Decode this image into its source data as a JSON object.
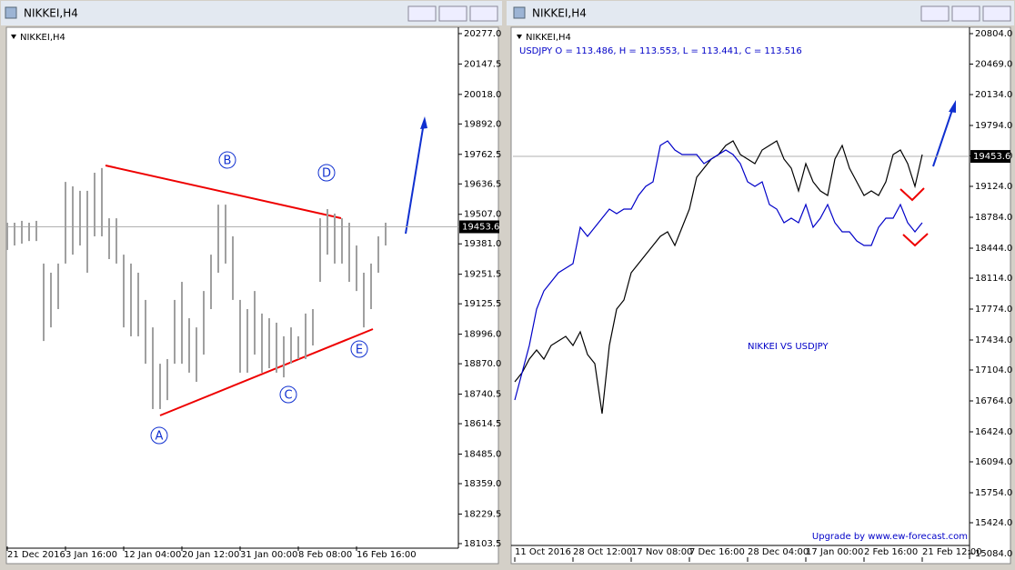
{
  "chart_data": [
    {
      "type": "range_bar",
      "title": "NIKKEI,H4",
      "symbol_label": "NIKKEI,H4",
      "color": "#a0a0a0",
      "categories": [
        "21 Dec 2016",
        null,
        null,
        null,
        null,
        null,
        null,
        null,
        "3 Jan 16:00",
        null,
        null,
        null,
        null,
        null,
        null,
        null,
        "12 Jan 04:00",
        null,
        null,
        null,
        null,
        null,
        null,
        null,
        "20 Jan 12:00",
        null,
        null,
        null,
        null,
        null,
        null,
        null,
        "31 Jan 00:00",
        null,
        null,
        null,
        null,
        null,
        null,
        null,
        "8 Feb 08:00",
        null,
        null,
        null,
        null,
        null,
        null,
        null,
        "16 Feb 16:00",
        null,
        null,
        null,
        null
      ],
      "highs": [
        19471,
        19471,
        19479,
        19471,
        19479,
        19297,
        19258,
        19297,
        19645,
        19626,
        19607,
        19607,
        19684,
        19704,
        19490,
        19490,
        19335,
        19297,
        19258,
        19142,
        19025,
        18870,
        18890,
        19142,
        19219,
        19064,
        19025,
        19180,
        19335,
        19548,
        19548,
        19413,
        19142,
        19103,
        19180,
        19084,
        19064,
        19045,
        18987,
        19025,
        18987,
        19084,
        19103,
        19490,
        19529,
        19510,
        19490,
        19471,
        19374,
        19258,
        19297,
        19413,
        19471
      ],
      "lows": [
        19355,
        19374,
        19382,
        19393,
        19393,
        18967,
        19025,
        19103,
        19297,
        19335,
        19374,
        19258,
        19413,
        19413,
        19316,
        19297,
        19025,
        18987,
        18987,
        18870,
        18677,
        18677,
        18715,
        18870,
        18870,
        18832,
        18793,
        18909,
        19103,
        19258,
        19297,
        19142,
        18832,
        18832,
        18909,
        18832,
        18851,
        18832,
        18812,
        18870,
        18890,
        18890,
        18948,
        19219,
        19335,
        19297,
        19297,
        19219,
        19180,
        19025,
        19103,
        19258,
        19374
      ],
      "current_price": 19453.6,
      "wave_labels": [
        "A",
        "B",
        "C",
        "D",
        "E"
      ],
      "ylim": [
        18084,
        20304
      ],
      "yticks": [
        {
          "value": 20277,
          "label": "20277.0"
        },
        {
          "value": 20147.5,
          "label": "20147.5"
        },
        {
          "value": 20018,
          "label": "20018.0"
        },
        {
          "value": 19892,
          "label": "19892.0"
        },
        {
          "value": 19762.5,
          "label": "19762.5"
        },
        {
          "value": 19636.5,
          "label": "19636.5"
        },
        {
          "value": 19507,
          "label": "19507.0"
        },
        {
          "value": 19381,
          "label": "19381.0"
        },
        {
          "value": 19251.5,
          "label": "19251.5"
        },
        {
          "value": 19125.5,
          "label": "19125.5"
        },
        {
          "value": 18996,
          "label": "18996.0"
        },
        {
          "value": 18870,
          "label": "18870.0"
        },
        {
          "value": 18740.5,
          "label": "18740.5"
        },
        {
          "value": 18614.5,
          "label": "18614.5"
        },
        {
          "value": 18485,
          "label": "18485.0"
        },
        {
          "value": 18359,
          "label": "18359.0"
        },
        {
          "value": 18229.5,
          "label": "18229.5"
        },
        {
          "value": 18103.5,
          "label": "18103.5"
        }
      ]
    },
    {
      "type": "line",
      "title": "NIKKEI,H4",
      "symbol_label": "NIKKEI,H4",
      "info": "USDJPY O = 113.486, H = 113.553, L = 113.441, C = 113.516",
      "annotation": "NIKKEI VS USDJPY",
      "footer": "Upgrade by www.ew-forecast.com",
      "categories": [
        "11 Oct 2016",
        null,
        null,
        null,
        null,
        null,
        null,
        null,
        "28 Oct 12:00",
        null,
        null,
        null,
        null,
        null,
        null,
        null,
        "17 Nov 08:00",
        null,
        null,
        null,
        null,
        null,
        null,
        null,
        "7 Dec 16:00",
        null,
        null,
        null,
        null,
        null,
        null,
        null,
        "28 Dec 04:00",
        null,
        null,
        null,
        null,
        null,
        null,
        null,
        "17 Jan 00:00",
        null,
        null,
        null,
        null,
        null,
        null,
        null,
        "2 Feb 16:00",
        null,
        null,
        null,
        null,
        null,
        null,
        null,
        "21 Feb 12:00"
      ],
      "series": [
        {
          "color": "#000000",
          "values": [
            16974,
            17074,
            17224,
            17324,
            17224,
            17374,
            17424,
            17474,
            17374,
            17524,
            17274,
            17174,
            16624,
            17374,
            17774,
            17874,
            18174,
            18274,
            18374,
            18474,
            18574,
            18624,
            18474,
            18674,
            18874,
            19224,
            19324,
            19424,
            19474,
            19574,
            19624,
            19474,
            19424,
            19374,
            19524,
            19574,
            19624,
            19424,
            19324,
            19074,
            19374,
            19174,
            19074,
            19024,
            19424,
            19574,
            19324,
            19174,
            19024,
            19074,
            19024,
            19174,
            19474,
            19524,
            19374,
            19124,
            19474
          ]
        },
        {
          "color": "#0000c8",
          "values": [
            16774,
            17074,
            17374,
            17774,
            17974,
            18074,
            18174,
            18224,
            18274,
            18674,
            18574,
            18674,
            18774,
            18874,
            18824,
            18874,
            18874,
            19024,
            19124,
            19174,
            19574,
            19624,
            19524,
            19474,
            19474,
            19474,
            19374,
            19424,
            19474,
            19524,
            19474,
            19374,
            19174,
            19124,
            19174,
            18924,
            18874,
            18724,
            18774,
            18724,
            18924,
            18674,
            18774,
            18924,
            18724,
            18624,
            18624,
            18524,
            18474,
            18474,
            18674,
            18774,
            18774,
            18924,
            18724,
            18624,
            18724
          ]
        }
      ],
      "current_price": 19453.6,
      "ylim": [
        15024,
        20874
      ],
      "yticks": [
        {
          "value": 20804,
          "label": "20804.0"
        },
        {
          "value": 20469,
          "label": "20469.0"
        },
        {
          "value": 20134,
          "label": "20134.0"
        },
        {
          "value": 19794,
          "label": "19794.0"
        },
        {
          "value": 19459,
          "label": "19459.0"
        },
        {
          "value": 19124,
          "label": "19124.0"
        },
        {
          "value": 18784,
          "label": "18784.0"
        },
        {
          "value": 18444,
          "label": "18444.0"
        },
        {
          "value": 18114,
          "label": "18114.0"
        },
        {
          "value": 17774,
          "label": "17774.0"
        },
        {
          "value": 17434,
          "label": "17434.0"
        },
        {
          "value": 17104,
          "label": "17104.0"
        },
        {
          "value": 16764,
          "label": "16764.0"
        },
        {
          "value": 16424,
          "label": "16424.0"
        },
        {
          "value": 16094,
          "label": "16094.0"
        },
        {
          "value": 15754,
          "label": "15754.0"
        },
        {
          "value": 15424,
          "label": "15424.0"
        },
        {
          "value": 15084,
          "label": "15084.0"
        }
      ]
    }
  ]
}
